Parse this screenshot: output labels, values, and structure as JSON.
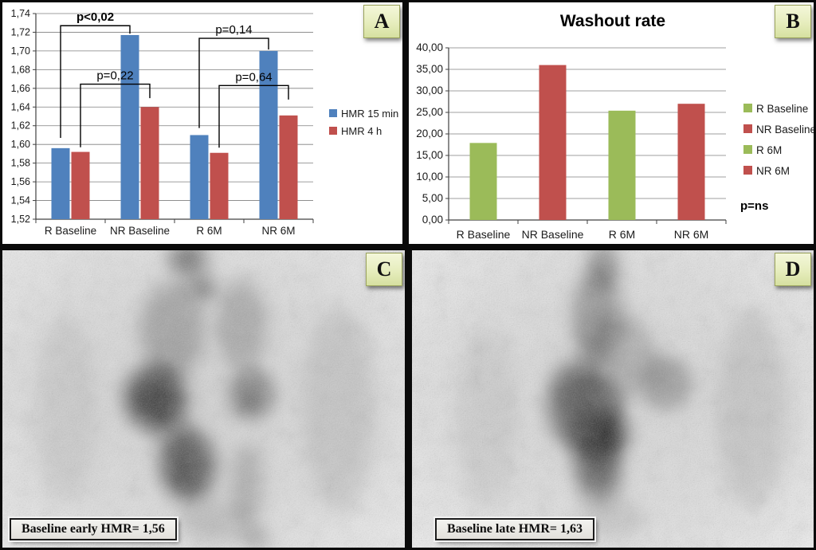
{
  "figure": {
    "panels": [
      {
        "label": "A"
      },
      {
        "label": "B"
      },
      {
        "label": "C",
        "caption": "Baseline early HMR= 1,56"
      },
      {
        "label": "D",
        "caption": "Baseline late HMR= 1,63"
      }
    ]
  },
  "colors": {
    "excel_blue": "#4F81BD",
    "excel_red": "#C0504D",
    "excel_green": "#9BBB59",
    "panel_tag_bg": "#e6edbd",
    "gridline": "#7f7f7f"
  },
  "chart_data": [
    {
      "panel": "A",
      "type": "bar",
      "categories": [
        "R Baseline",
        "NR Baseline",
        "R 6M",
        "NR 6M"
      ],
      "series": [
        {
          "name": "HMR 15 min",
          "color": "#4F81BD",
          "values": [
            1.596,
            1.717,
            1.61,
            1.7
          ]
        },
        {
          "name": "HMR 4 h",
          "color": "#C0504D",
          "values": [
            1.592,
            1.64,
            1.591,
            1.631
          ]
        }
      ],
      "ylim": [
        1.52,
        1.74
      ],
      "ytick": 0.02,
      "decimals": 2,
      "decimal_comma": true,
      "grid": true,
      "legend_position": "right",
      "annotations": [
        {
          "text": "p<0,02",
          "bold": true,
          "from": {
            "cat": 0,
            "series": 0
          },
          "to": {
            "cat": 1,
            "series": 0
          },
          "y": 1.727,
          "drop_from": 1.607,
          "drop_to": 1.7185
        },
        {
          "text": "p=0,22",
          "bold": false,
          "from": {
            "cat": 0,
            "series": 1
          },
          "to": {
            "cat": 1,
            "series": 1
          },
          "y": 1.6645,
          "drop_from": 1.597,
          "drop_to": 1.6495
        },
        {
          "text": "p=0,14",
          "bold": false,
          "from": {
            "cat": 2,
            "series": 0
          },
          "to": {
            "cat": 3,
            "series": 0
          },
          "y": 1.7135,
          "drop_from": 1.6175,
          "drop_to": 1.7015
        },
        {
          "text": "p=0,64",
          "bold": false,
          "from": {
            "cat": 2,
            "series": 1
          },
          "to": {
            "cat": 3,
            "series": 1
          },
          "y": 1.663,
          "drop_from": 1.5965,
          "drop_to": 1.648
        }
      ]
    },
    {
      "panel": "B",
      "type": "bar",
      "title": "Washout rate",
      "categories": [
        "R Baseline",
        "NR Baseline",
        "R 6M",
        "NR 6M"
      ],
      "values": [
        17.9,
        36.0,
        25.4,
        27.0
      ],
      "bar_colors": [
        "#9BBB59",
        "#C0504D",
        "#9BBB59",
        "#C0504D"
      ],
      "ylim": [
        0,
        40
      ],
      "ytick": 5,
      "decimals": 2,
      "decimal_comma": true,
      "grid": true,
      "legend_position": "right",
      "legend": [
        {
          "label": "R Baseline",
          "color": "#9BBB59"
        },
        {
          "label": "NR Baseline",
          "color": "#C0504D"
        },
        {
          "label": "R 6M",
          "color": "#9BBB59"
        },
        {
          "label": "NR 6M",
          "color": "#C0504D"
        }
      ],
      "note": "p=ns"
    }
  ]
}
